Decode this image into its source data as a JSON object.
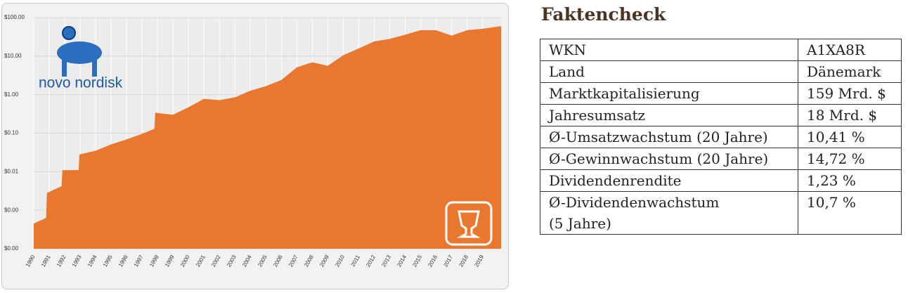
{
  "chart_data": {
    "type": "area",
    "yscale": "log",
    "grid": true,
    "color": "#e8782f",
    "x": [
      1990,
      1990.8,
      1990.85,
      1991.8,
      1991.85,
      1992.9,
      1992.95,
      1994,
      1995,
      1996,
      1997,
      1997.8,
      1997.85,
      1999,
      2000,
      2001,
      2002,
      2003,
      2004,
      2005,
      2006,
      2007,
      2008,
      2009,
      2010,
      2011,
      2012,
      2013,
      2014,
      2015,
      2016,
      2017,
      2018,
      2019,
      2020.2
    ],
    "values": [
      0.00045,
      0.00063,
      0.0028,
      0.0042,
      0.011,
      0.011,
      0.028,
      0.035,
      0.051,
      0.069,
      0.096,
      0.13,
      0.34,
      0.3,
      0.47,
      0.78,
      0.72,
      0.85,
      1.26,
      1.66,
      2.4,
      5.1,
      6.9,
      5.6,
      10.5,
      15.8,
      24,
      28,
      36,
      47,
      47,
      34,
      47,
      51,
      60
    ],
    "xlim": [
      1990,
      2020.2
    ],
    "xticks": [
      1990,
      1991,
      1992,
      1993,
      1994,
      1995,
      1996,
      1997,
      1998,
      1999,
      2000,
      2001,
      2002,
      2003,
      2004,
      2005,
      2006,
      2007,
      2008,
      2009,
      2010,
      2011,
      2012,
      2013,
      2014,
      2015,
      2016,
      2017,
      2018,
      2019
    ],
    "ylim": [
      0.0001,
      100
    ],
    "yticks": [
      {
        "value": 0.0001,
        "label": "$0.00"
      },
      {
        "value": 0.001,
        "label": "$0.00"
      },
      {
        "value": 0.01,
        "label": "$0.01"
      },
      {
        "value": 0.1,
        "label": "$0.10"
      },
      {
        "value": 1,
        "label": "$1.00"
      },
      {
        "value": 10,
        "label": "$10.00"
      },
      {
        "value": 100,
        "label": "$100.00"
      }
    ],
    "logo": "novo nordisk"
  },
  "factcheck": {
    "title": "Faktencheck",
    "rows": [
      [
        "WKN",
        "A1XA8R"
      ],
      [
        "Land",
        "Dänemark"
      ],
      [
        "Marktkapitalisierung",
        "159 Mrd. $"
      ],
      [
        "Jahresumsatz",
        "18 Mrd. $"
      ],
      [
        "Ø-Umsatzwachstum (20 Jahre)",
        "10,41 %"
      ],
      [
        "Ø-Gewinnwachstum (20 Jahre)",
        "14,72 %"
      ],
      [
        "Dividendenrendite",
        "1,23 %"
      ],
      [
        "Ø-Dividendenwachstum\n(5 Jahre)",
        "10,7 %"
      ]
    ]
  }
}
